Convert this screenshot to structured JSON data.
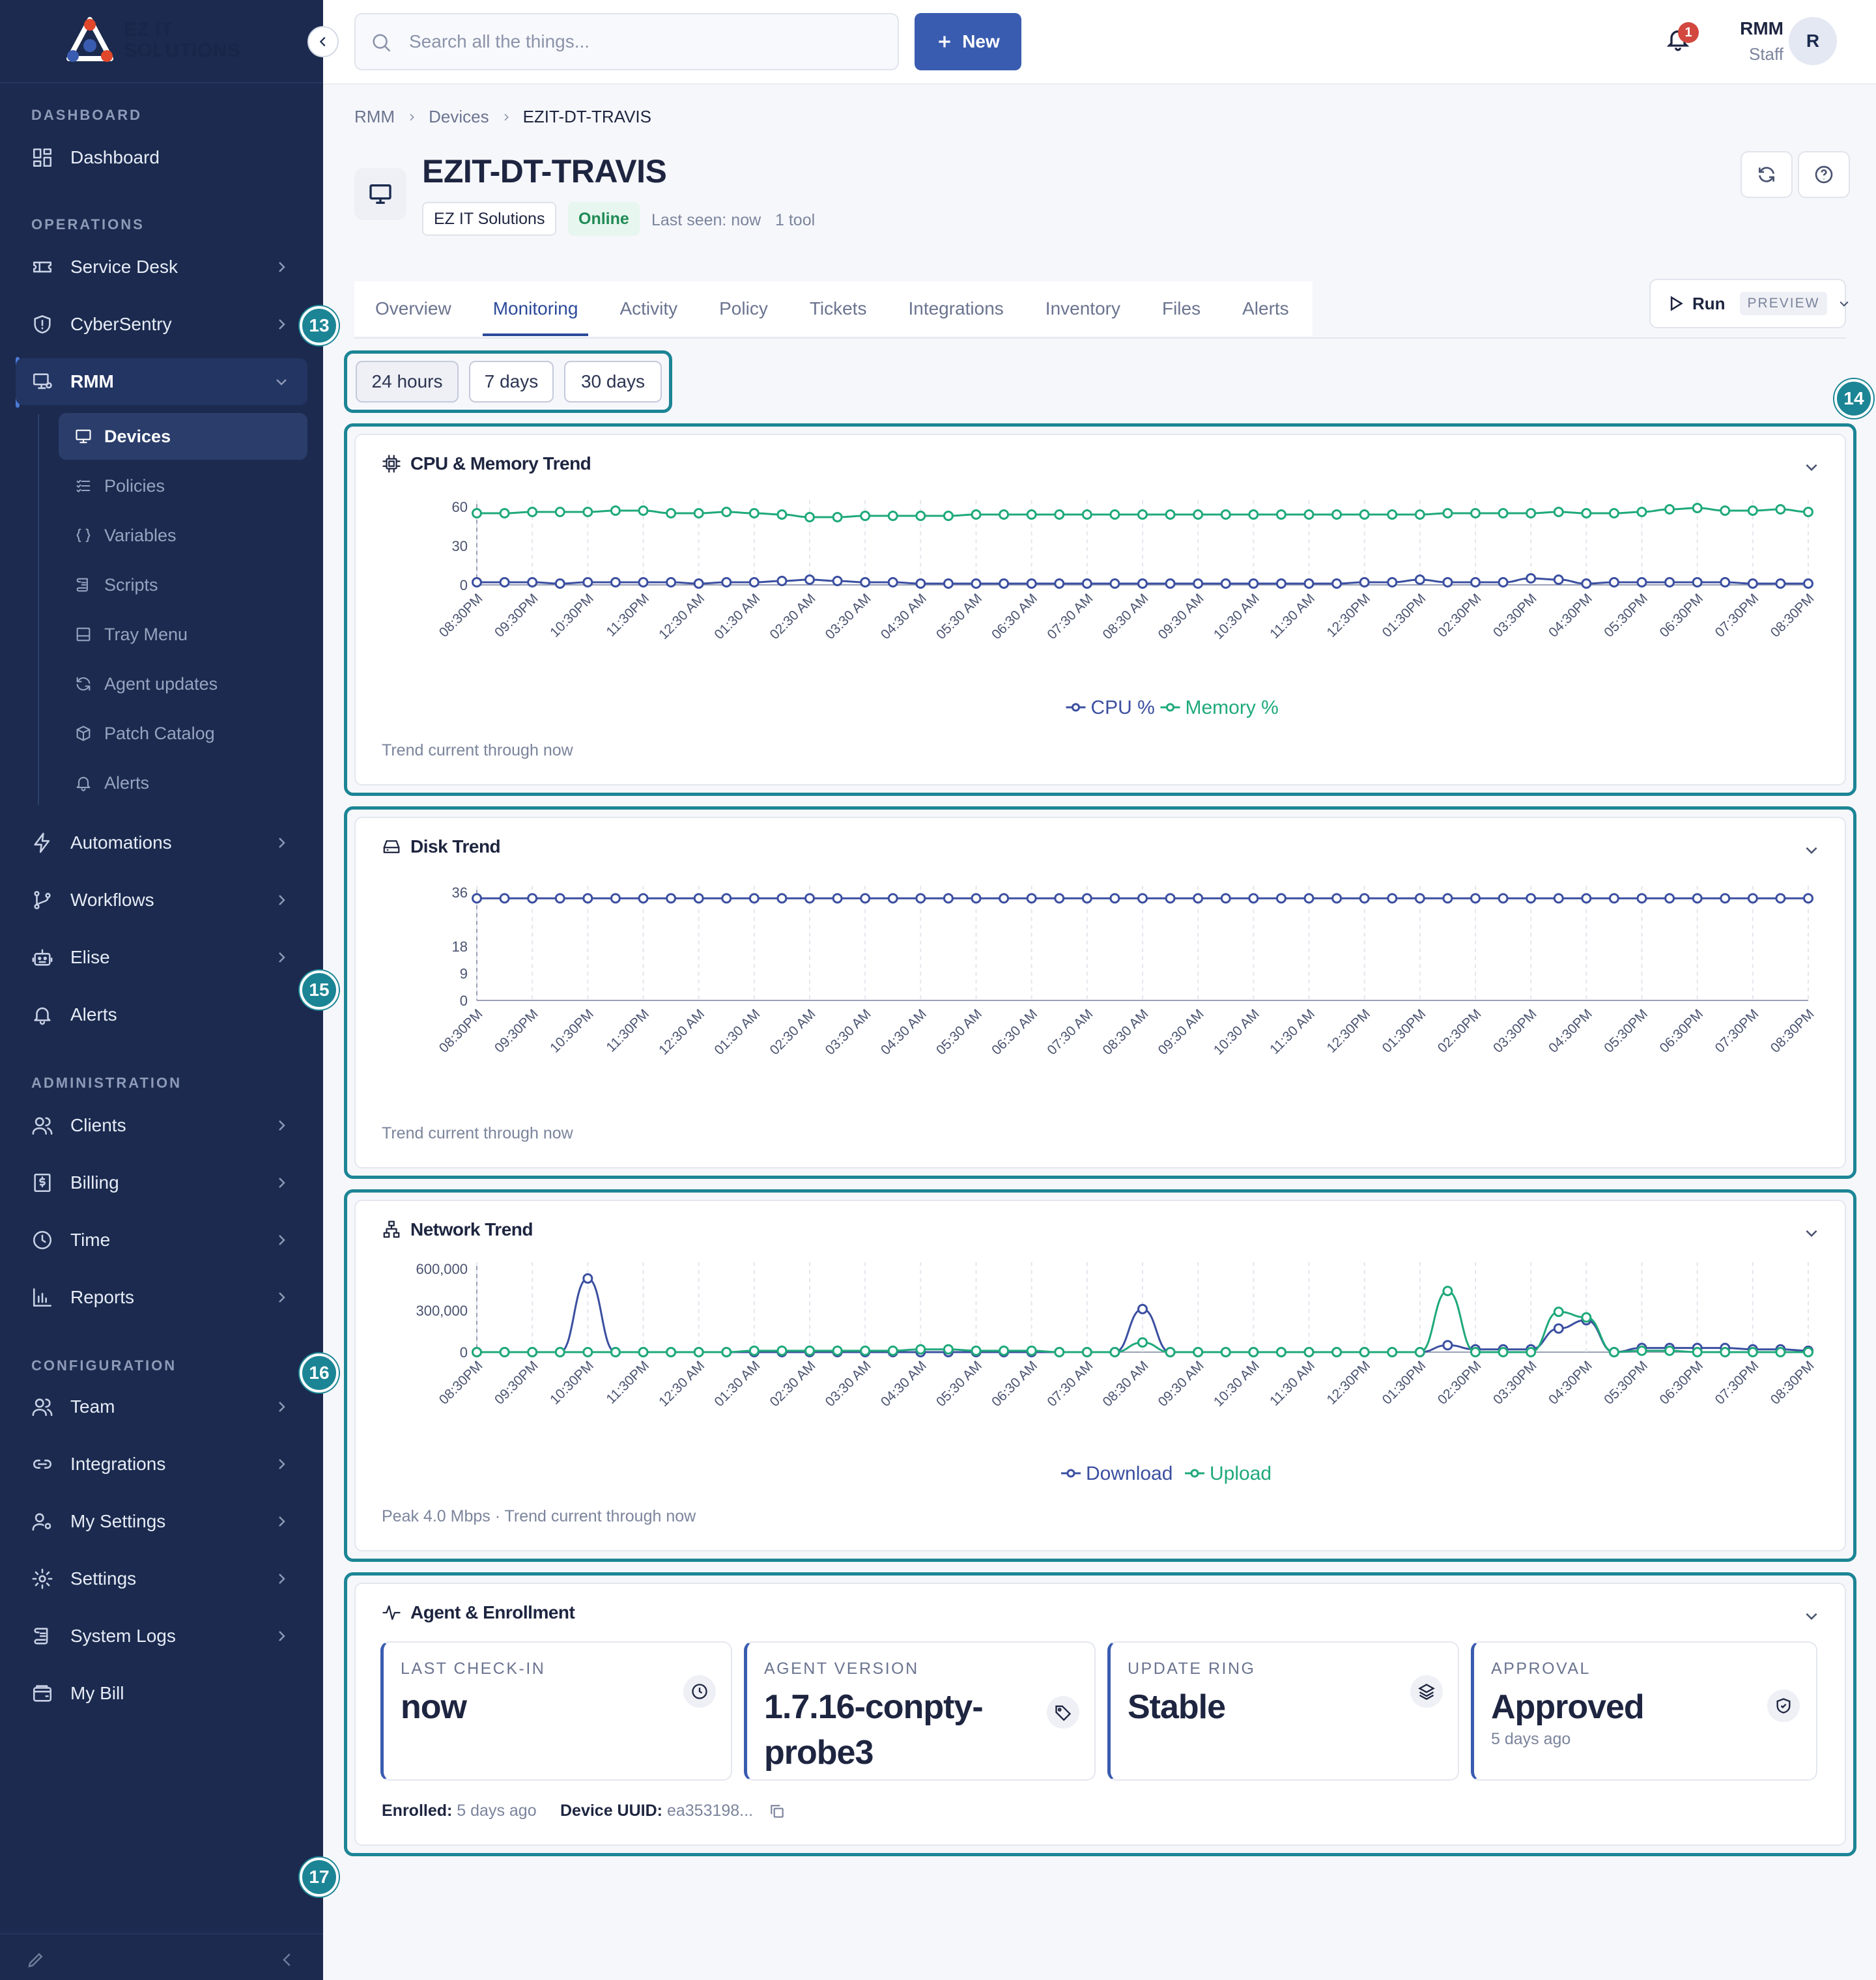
{
  "brand": {
    "name_line1": "EZ IT",
    "name_line2": "SOLUTIONS",
    "colors": {
      "sidebar": "#1b2a4e",
      "accent": "#3a5cb0",
      "highlight": "#1c8595",
      "cpu": "#3b4fa0",
      "memory": "#1fa97a"
    }
  },
  "sidebar": {
    "sections": {
      "dashboard": "DASHBOARD",
      "operations": "OPERATIONS",
      "administration": "ADMINISTRATION",
      "configuration": "CONFIGURATION"
    },
    "items": {
      "dashboard": "Dashboard",
      "service_desk": "Service Desk",
      "cybersentry": "CyberSentry",
      "rmm": "RMM",
      "automations": "Automations",
      "workflows": "Workflows",
      "elise": "Elise",
      "alerts": "Alerts",
      "clients": "Clients",
      "billing": "Billing",
      "time": "Time",
      "reports": "Reports",
      "team": "Team",
      "integrations": "Integrations",
      "my_settings": "My Settings",
      "settings": "Settings",
      "system_logs": "System Logs",
      "my_bill": "My Bill"
    },
    "rmm_sub": {
      "devices": "Devices",
      "policies": "Policies",
      "variables": "Variables",
      "scripts": "Scripts",
      "tray_menu": "Tray Menu",
      "agent_updates": "Agent updates",
      "patch_catalog": "Patch Catalog",
      "alerts": "Alerts"
    }
  },
  "header": {
    "search_placeholder": "Search all the things...",
    "new_label": "New",
    "notifications": "1",
    "user_name": "RMM",
    "user_role": "Staff",
    "avatar": "R"
  },
  "breadcrumb": {
    "root": "RMM",
    "parent": "Devices",
    "current": "EZIT-DT-TRAVIS"
  },
  "device": {
    "name": "EZIT-DT-TRAVIS",
    "client": "EZ IT Solutions",
    "status": "Online",
    "last_seen": "Last seen: now",
    "tools": "1 tool"
  },
  "tabs": [
    "Overview",
    "Monitoring",
    "Activity",
    "Policy",
    "Tickets",
    "Integrations",
    "Inventory",
    "Files",
    "Alerts"
  ],
  "active_tab": "Monitoring",
  "run": {
    "label": "Run",
    "badge": "PREVIEW"
  },
  "range": {
    "h24": "24 hours",
    "d7": "7 days",
    "d30": "30 days",
    "selected": "24 hours"
  },
  "markers": {
    "m13": "13",
    "m14": "14",
    "m15": "15",
    "m16": "16",
    "m17": "17"
  },
  "cards": {
    "cpu": {
      "title": "CPU & Memory Trend",
      "footer": "Trend current through now"
    },
    "disk": {
      "title": "Disk Trend",
      "footer": "Trend current through now"
    },
    "network": {
      "title": "Network Trend",
      "footer": "Peak 4.0 Mbps · Trend current through now"
    },
    "agent": {
      "title": "Agent & Enrollment"
    }
  },
  "chart_data": [
    {
      "type": "line",
      "title": "CPU & Memory Trend",
      "x_tick_labels": [
        "08:30PM",
        "09:30PM",
        "10:30PM",
        "11:30PM",
        "12:30 AM",
        "01:30 AM",
        "02:30 AM",
        "03:30 AM",
        "04:30 AM",
        "05:30 AM",
        "06:30 AM",
        "07:30 AM",
        "08:30 AM",
        "09:30 AM",
        "10:30 AM",
        "11:30 AM",
        "12:30PM",
        "01:30PM",
        "02:30PM",
        "03:30PM",
        "04:30PM",
        "05:30PM",
        "06:30PM",
        "07:30PM",
        "08:30PM"
      ],
      "y_ticks": [
        0,
        30,
        60
      ],
      "ylim": [
        0,
        60
      ],
      "legend_position": "bottom",
      "grid": "vertical-dashed",
      "series": [
        {
          "name": "CPU %",
          "color": "#3b4fa0",
          "values": [
            2,
            2,
            2,
            1,
            2,
            2,
            2,
            2,
            1,
            2,
            2,
            3,
            4,
            3,
            2,
            2,
            1,
            1,
            1,
            1,
            1,
            1,
            1,
            1,
            1,
            1,
            1,
            1,
            1,
            1,
            1,
            1,
            2,
            2,
            4,
            2,
            2,
            2,
            5,
            4,
            1,
            2,
            2,
            2,
            2,
            2,
            1,
            1,
            1
          ]
        },
        {
          "name": "Memory %",
          "color": "#1fa97a",
          "values": [
            55,
            55,
            56,
            56,
            56,
            57,
            57,
            55,
            55,
            56,
            55,
            54,
            52,
            52,
            53,
            53,
            53,
            53,
            54,
            54,
            54,
            54,
            54,
            54,
            54,
            54,
            54,
            54,
            54,
            54,
            54,
            54,
            54,
            54,
            54,
            55,
            55,
            55,
            55,
            56,
            55,
            55,
            56,
            58,
            59,
            57,
            57,
            58,
            56
          ]
        }
      ]
    },
    {
      "type": "line",
      "title": "Disk Trend",
      "x_tick_labels": [
        "08:30PM",
        "09:30PM",
        "10:30PM",
        "11:30PM",
        "12:30 AM",
        "01:30 AM",
        "02:30 AM",
        "03:30 AM",
        "04:30 AM",
        "05:30 AM",
        "06:30 AM",
        "07:30 AM",
        "08:30 AM",
        "09:30 AM",
        "10:30 AM",
        "11:30 AM",
        "12:30PM",
        "01:30PM",
        "02:30PM",
        "03:30PM",
        "04:30PM",
        "05:30PM",
        "06:30PM",
        "07:30PM",
        "08:30PM"
      ],
      "y_ticks": [
        0,
        9,
        18,
        36
      ],
      "ylim": [
        0,
        36
      ],
      "grid": "vertical-dashed",
      "series": [
        {
          "name": "Disk",
          "color": "#3b4fa0",
          "values": [
            34,
            34,
            34,
            34,
            34,
            34,
            34,
            34,
            34,
            34,
            34,
            34,
            34,
            34,
            34,
            34,
            34,
            34,
            34,
            34,
            34,
            34,
            34,
            34,
            34,
            34,
            34,
            34,
            34,
            34,
            34,
            34,
            34,
            34,
            34,
            34,
            34,
            34,
            34,
            34,
            34,
            34,
            34,
            34,
            34,
            34,
            34,
            34,
            34
          ]
        }
      ]
    },
    {
      "type": "line",
      "title": "Network Trend",
      "x_tick_labels": [
        "08:30PM",
        "09:30PM",
        "10:30PM",
        "11:30PM",
        "12:30 AM",
        "01:30 AM",
        "02:30 AM",
        "03:30 AM",
        "04:30 AM",
        "05:30 AM",
        "06:30 AM",
        "07:30 AM",
        "08:30 AM",
        "09:30 AM",
        "10:30 AM",
        "11:30 AM",
        "12:30PM",
        "01:30PM",
        "02:30PM",
        "03:30PM",
        "04:30PM",
        "05:30PM",
        "06:30PM",
        "07:30PM",
        "08:30PM"
      ],
      "y_ticks": [
        0,
        300000,
        600000
      ],
      "ylim": [
        0,
        600000
      ],
      "legend_position": "bottom",
      "grid": "vertical-dashed",
      "series": [
        {
          "name": "Download",
          "color": "#3b4fa0",
          "values": [
            0,
            0,
            0,
            0,
            530000,
            0,
            0,
            0,
            0,
            0,
            0,
            0,
            0,
            0,
            0,
            0,
            0,
            0,
            0,
            0,
            0,
            0,
            0,
            0,
            310000,
            0,
            0,
            0,
            0,
            0,
            0,
            0,
            0,
            0,
            0,
            50000,
            20000,
            20000,
            20000,
            170000,
            230000,
            0,
            30000,
            30000,
            30000,
            30000,
            20000,
            20000,
            10000
          ]
        },
        {
          "name": "Upload",
          "color": "#1fa97a",
          "values": [
            0,
            0,
            0,
            0,
            0,
            0,
            0,
            0,
            0,
            0,
            10000,
            10000,
            10000,
            10000,
            10000,
            10000,
            20000,
            20000,
            10000,
            10000,
            10000,
            0,
            0,
            0,
            70000,
            0,
            0,
            0,
            0,
            0,
            0,
            0,
            0,
            0,
            0,
            440000,
            0,
            0,
            0,
            290000,
            250000,
            0,
            10000,
            10000,
            0,
            0,
            0,
            0,
            0
          ]
        }
      ]
    }
  ],
  "agent": {
    "last_checkin_label": "Last check-in",
    "last_checkin": "now",
    "version_label": "Agent version",
    "version": "1.7.16-conpty-probe3",
    "ring_label": "Update ring",
    "ring": "Stable",
    "approval_label": "Approval",
    "approval": "Approved",
    "approval_sub": "5 days ago",
    "enrolled_label": "Enrolled:",
    "enrolled": "5 days ago",
    "uuid_label": "Device UUID:",
    "uuid": "ea353198..."
  }
}
